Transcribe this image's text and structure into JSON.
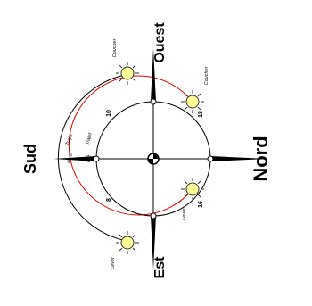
{
  "directions": {
    "north": "Nord",
    "south": "Sud",
    "east": "Est",
    "west": "Ouest"
  },
  "arc_labels": {
    "hiver": "Hiver",
    "trajet_outer": "Trajet",
    "trajet_inner": "Trajet",
    "ete": "Été"
  },
  "sun_labels": {
    "coucher_winter": "Coucher",
    "coucher_summer": "Coucher",
    "lever_winter": "Lever",
    "lever_summer": "Lever"
  },
  "hour_labels": {
    "h10": "10",
    "h18": "18",
    "h8": "8",
    "h16": "16"
  },
  "colors": {
    "summer_arc": "#e00000",
    "winter_arc": "#000000",
    "sun_fill": "#ffff99",
    "sun_stroke": "#333333"
  },
  "icons": {
    "sun": "sun-icon",
    "center": "observer-center-icon",
    "arrow": "compass-arrow-icon"
  }
}
